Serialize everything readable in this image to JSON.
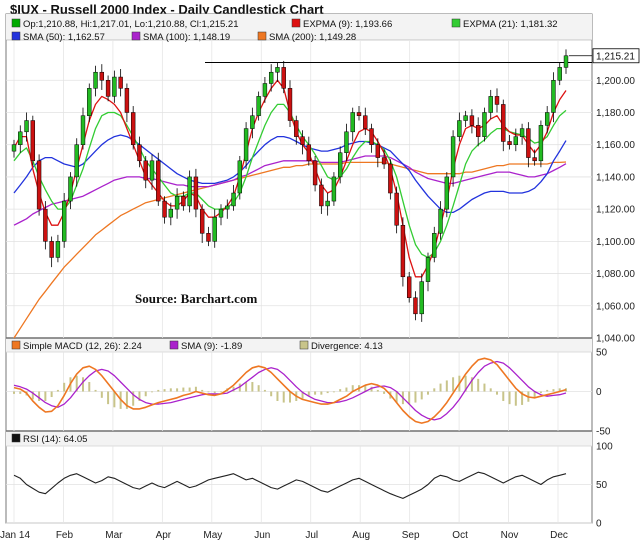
{
  "chart_data": {
    "type": "candlestick",
    "title": "$IUX - Russell 2000 Index - Daily Candlestick Chart",
    "source": "Source:  Barchart.com",
    "x_labels": [
      "Jan 14",
      "Feb",
      "Mar",
      "Apr",
      "May",
      "Jun",
      "Jul",
      "Aug",
      "Sep",
      "Oct",
      "Nov",
      "Dec"
    ],
    "price_panel": {
      "legend": [
        {
          "label": "Op:1,210.88, Hi:1,217.01, Lo:1,210.88, Cl:1,215.21",
          "color": "#00aa00"
        },
        {
          "label": "EXPMA (9): 1,193.66",
          "color": "#dd1111"
        },
        {
          "label": "EXPMA (21): 1,181.32",
          "color": "#33cc33"
        },
        {
          "label": "SMA (50): 1,162.57",
          "color": "#2233dd"
        },
        {
          "label": "SMA (100): 1,148.19",
          "color": "#aa22cc"
        },
        {
          "label": "SMA (200): 1,149.28",
          "color": "#ee7722"
        }
      ],
      "ylim": [
        1040,
        1225
      ],
      "yticks": [
        1040,
        1060,
        1080,
        1100,
        1120,
        1140,
        1160,
        1180,
        1200
      ],
      "ytick_labels": [
        "1,040.00",
        "1,060.00",
        "1,080.00",
        "1,100.00",
        "1,120.00",
        "1,140.00",
        "1,160.00",
        "1,180.00",
        "1,200.00"
      ],
      "last_label": "1,215.21",
      "last_value": 1215.21,
      "reference_line": 1211,
      "closes": [
        1160,
        1168,
        1175,
        1150,
        1120,
        1100,
        1090,
        1100,
        1125,
        1140,
        1160,
        1178,
        1195,
        1205,
        1200,
        1190,
        1202,
        1195,
        1180,
        1160,
        1150,
        1138,
        1150,
        1125,
        1115,
        1120,
        1128,
        1122,
        1140,
        1120,
        1105,
        1100,
        1115,
        1120,
        1122,
        1130,
        1150,
        1170,
        1178,
        1190,
        1198,
        1205,
        1208,
        1195,
        1175,
        1165,
        1160,
        1150,
        1135,
        1122,
        1125,
        1140,
        1155,
        1168,
        1180,
        1178,
        1170,
        1160,
        1152,
        1148,
        1130,
        1110,
        1078,
        1065,
        1055,
        1075,
        1090,
        1105,
        1120,
        1140,
        1165,
        1175,
        1178,
        1172,
        1165,
        1180,
        1190,
        1185,
        1162,
        1160,
        1165,
        1170,
        1152,
        1150,
        1172,
        1180,
        1200,
        1208,
        1215.21
      ],
      "ema9": [
        1158,
        1165,
        1165,
        1145,
        1130,
        1118,
        1110,
        1110,
        1118,
        1130,
        1145,
        1160,
        1175,
        1185,
        1190,
        1188,
        1185,
        1180,
        1170,
        1160,
        1150,
        1140,
        1135,
        1130,
        1125,
        1122,
        1122,
        1125,
        1130,
        1128,
        1120,
        1115,
        1115,
        1118,
        1122,
        1128,
        1140,
        1155,
        1170,
        1180,
        1188,
        1195,
        1200,
        1195,
        1180,
        1168,
        1160,
        1155,
        1145,
        1135,
        1130,
        1132,
        1140,
        1150,
        1160,
        1168,
        1170,
        1168,
        1162,
        1155,
        1145,
        1130,
        1110,
        1090,
        1078,
        1078,
        1085,
        1095,
        1110,
        1125,
        1145,
        1160,
        1170,
        1172,
        1170,
        1172,
        1176,
        1178,
        1172,
        1168,
        1166,
        1166,
        1160,
        1155,
        1160,
        1168,
        1180,
        1188,
        1193.66
      ],
      "ema21": [
        1150,
        1155,
        1158,
        1150,
        1140,
        1132,
        1125,
        1120,
        1120,
        1125,
        1135,
        1145,
        1158,
        1170,
        1178,
        1180,
        1180,
        1178,
        1172,
        1165,
        1158,
        1150,
        1145,
        1140,
        1135,
        1130,
        1128,
        1128,
        1130,
        1130,
        1126,
        1122,
        1120,
        1120,
        1121,
        1124,
        1130,
        1140,
        1152,
        1162,
        1172,
        1180,
        1185,
        1185,
        1180,
        1172,
        1165,
        1160,
        1154,
        1147,
        1140,
        1138,
        1140,
        1145,
        1152,
        1158,
        1162,
        1162,
        1160,
        1157,
        1150,
        1140,
        1125,
        1110,
        1098,
        1092,
        1090,
        1093,
        1100,
        1110,
        1122,
        1135,
        1148,
        1156,
        1160,
        1163,
        1167,
        1170,
        1170,
        1168,
        1167,
        1166,
        1164,
        1161,
        1162,
        1165,
        1172,
        1178,
        1181.32
      ],
      "sma50": [
        1130,
        1135,
        1140,
        1146,
        1150,
        1152,
        1152,
        1150,
        1148,
        1147,
        1146,
        1148,
        1152,
        1156,
        1160,
        1163,
        1165,
        1166,
        1165,
        1163,
        1160,
        1157,
        1154,
        1151,
        1148,
        1145,
        1142,
        1140,
        1138,
        1137,
        1136,
        1136,
        1136,
        1137,
        1138,
        1140,
        1143,
        1147,
        1152,
        1156,
        1160,
        1163,
        1165,
        1165,
        1164,
        1162,
        1160,
        1158,
        1157,
        1156,
        1156,
        1157,
        1158,
        1160,
        1161,
        1162,
        1162,
        1161,
        1160,
        1158,
        1156,
        1152,
        1148,
        1144,
        1138,
        1133,
        1128,
        1124,
        1120,
        1118,
        1118,
        1120,
        1123,
        1126,
        1128,
        1130,
        1131,
        1131,
        1131,
        1130,
        1130,
        1130,
        1131,
        1133,
        1137,
        1142,
        1150,
        1156,
        1162.57
      ],
      "sma100": [
        1110,
        1112,
        1114,
        1117,
        1119,
        1121,
        1123,
        1124,
        1125,
        1126,
        1127,
        1128,
        1130,
        1132,
        1134,
        1136,
        1138,
        1139,
        1140,
        1140,
        1140,
        1139,
        1139,
        1138,
        1137,
        1136,
        1135,
        1135,
        1134,
        1134,
        1134,
        1134,
        1135,
        1136,
        1137,
        1138,
        1140,
        1141,
        1143,
        1145,
        1147,
        1148,
        1149,
        1150,
        1150,
        1150,
        1150,
        1150,
        1150,
        1149,
        1149,
        1149,
        1149,
        1150,
        1151,
        1152,
        1153,
        1153,
        1153,
        1153,
        1152,
        1150,
        1148,
        1146,
        1143,
        1141,
        1139,
        1138,
        1137,
        1136,
        1136,
        1137,
        1138,
        1139,
        1140,
        1141,
        1142,
        1143,
        1143,
        1143,
        1142,
        1141,
        1140,
        1140,
        1141,
        1142,
        1144,
        1146,
        1148.19
      ],
      "sma200": [
        1040,
        1046,
        1052,
        1058,
        1064,
        1069,
        1074,
        1079,
        1084,
        1088,
        1092,
        1096,
        1100,
        1104,
        1107,
        1110,
        1113,
        1116,
        1118,
        1120,
        1122,
        1124,
        1125,
        1126,
        1127,
        1128,
        1129,
        1130,
        1131,
        1132,
        1133,
        1134,
        1135,
        1136,
        1137,
        1138,
        1139,
        1140,
        1141,
        1142,
        1143,
        1144,
        1145,
        1146,
        1146,
        1147,
        1147,
        1148,
        1148,
        1148,
        1148,
        1148,
        1148,
        1149,
        1149,
        1149,
        1149,
        1149,
        1149,
        1149,
        1148,
        1147,
        1146,
        1145,
        1144,
        1143,
        1142,
        1142,
        1142,
        1142,
        1142,
        1142,
        1143,
        1143,
        1144,
        1145,
        1146,
        1147,
        1147,
        1148,
        1148,
        1148,
        1148,
        1148,
        1148,
        1148,
        1149,
        1149,
        1149.28
      ]
    },
    "macd_panel": {
      "legend": [
        {
          "label": "Simple MACD (12, 26): 2.24",
          "color": "#ee7722"
        },
        {
          "label": "SMA (9): -1.89",
          "color": "#aa22cc"
        },
        {
          "label": "Divergence: 4.13",
          "color": "#c8c48a"
        }
      ],
      "ylim": [
        -50,
        50
      ],
      "yticks": [
        -50,
        0,
        50
      ],
      "ytick_labels": [
        "-50",
        "0",
        "50"
      ],
      "macd": [
        5,
        3,
        -2,
        -12,
        -20,
        -26,
        -25,
        -18,
        -5,
        10,
        22,
        30,
        32,
        28,
        20,
        10,
        0,
        -10,
        -18,
        -22,
        -22,
        -20,
        -17,
        -14,
        -12,
        -10,
        -8,
        -5,
        -3,
        0,
        -2,
        -4,
        -5,
        -3,
        2,
        8,
        16,
        24,
        30,
        32,
        30,
        24,
        16,
        8,
        0,
        -6,
        -10,
        -12,
        -14,
        -16,
        -16,
        -14,
        -10,
        -6,
        0,
        4,
        8,
        10,
        8,
        4,
        -4,
        -14,
        -24,
        -32,
        -38,
        -40,
        -38,
        -32,
        -24,
        -14,
        -2,
        10,
        22,
        32,
        40,
        42,
        40,
        34,
        24,
        14,
        4,
        -3,
        -7,
        -8,
        -6,
        -4,
        -2,
        0,
        2.24
      ],
      "signal": [
        8,
        6,
        3,
        -2,
        -8,
        -14,
        -18,
        -20,
        -16,
        -8,
        2,
        12,
        20,
        26,
        28,
        26,
        20,
        12,
        4,
        -4,
        -10,
        -14,
        -16,
        -16,
        -15,
        -14,
        -12,
        -10,
        -8,
        -6,
        -4,
        -3,
        -3,
        -3,
        -2,
        2,
        6,
        12,
        18,
        24,
        28,
        30,
        28,
        22,
        14,
        6,
        -1,
        -6,
        -10,
        -12,
        -14,
        -14,
        -13,
        -11,
        -8,
        -4,
        0,
        4,
        6,
        7,
        5,
        0,
        -8,
        -16,
        -24,
        -30,
        -34,
        -36,
        -34,
        -28,
        -20,
        -10,
        2,
        14,
        24,
        32,
        36,
        38,
        36,
        30,
        22,
        14,
        6,
        0,
        -4,
        -6,
        -5,
        -4,
        -1.89
      ]
    },
    "rsi_panel": {
      "legend": [
        {
          "label": "RSI (14): 64.05",
          "color": "#111111"
        }
      ],
      "ylim": [
        0,
        100
      ],
      "yticks": [
        0,
        50,
        100
      ],
      "ytick_labels": [
        "0",
        "50",
        "100"
      ],
      "rsi": [
        62,
        58,
        50,
        45,
        40,
        38,
        45,
        52,
        58,
        62,
        64,
        60,
        56,
        52,
        55,
        60,
        58,
        54,
        50,
        46,
        44,
        48,
        52,
        48,
        46,
        50,
        54,
        50,
        46,
        48,
        52,
        56,
        58,
        60,
        62,
        64,
        60,
        56,
        58,
        54,
        50,
        46,
        44,
        48,
        52,
        56,
        54,
        50,
        46,
        42,
        40,
        44,
        48,
        52,
        56,
        58,
        54,
        50,
        46,
        42,
        38,
        35,
        32,
        36,
        40,
        44,
        50,
        58,
        62,
        60,
        56,
        54,
        58,
        62,
        66,
        64,
        60,
        56,
        52,
        56,
        60,
        62,
        58,
        54,
        50,
        56,
        60,
        62,
        64.05
      ]
    }
  }
}
